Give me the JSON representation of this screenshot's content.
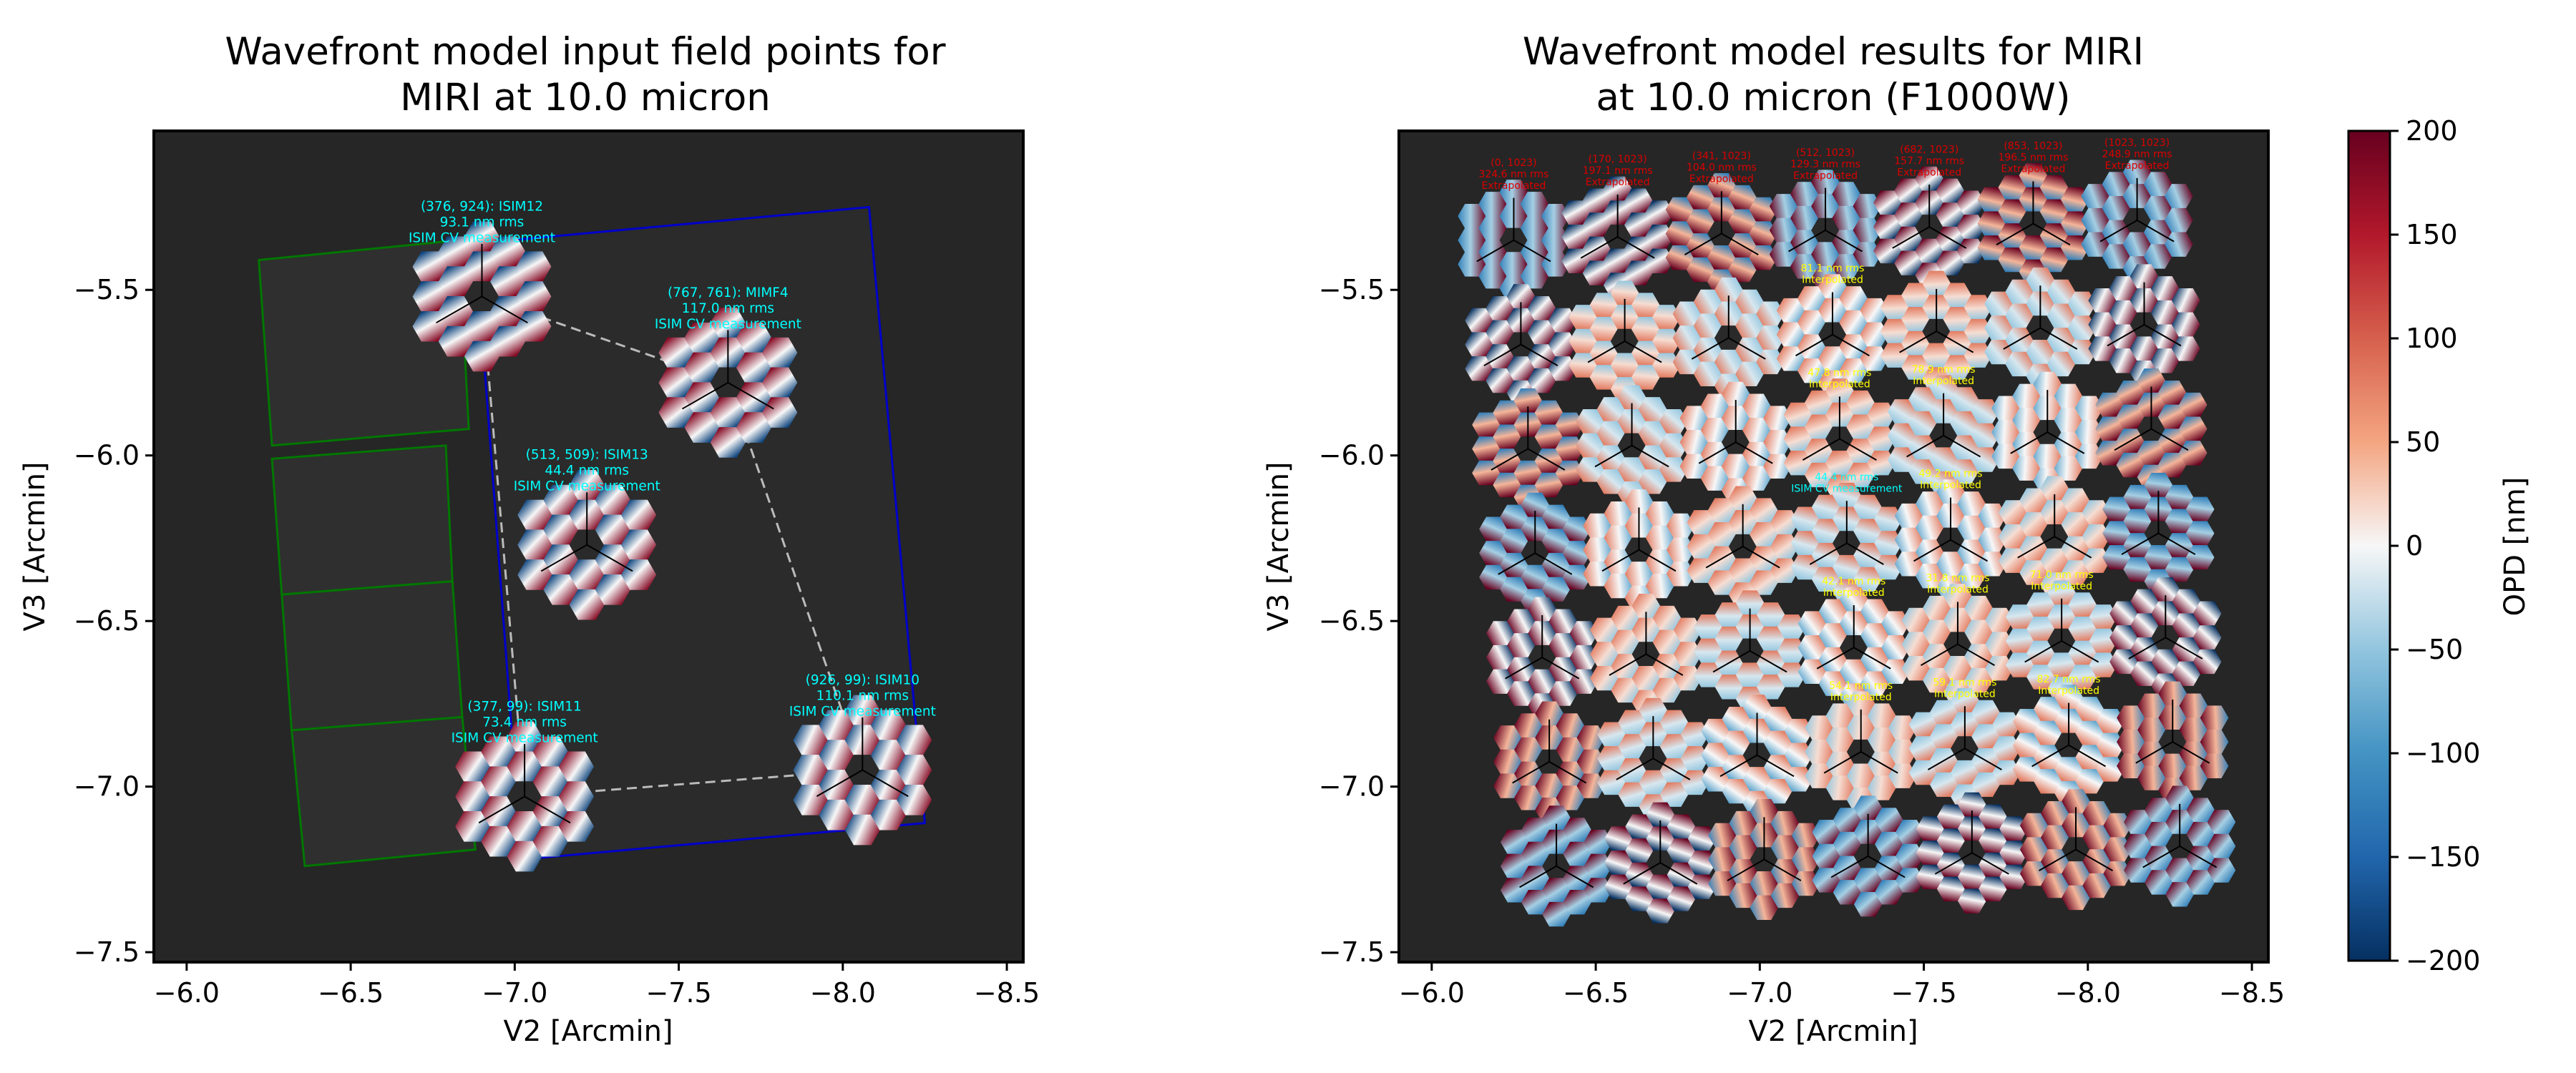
{
  "chart_data": [
    {
      "type": "scatter",
      "title": "Wavefront model input field points for\nMIRI at 10.0 micron",
      "xlabel": "V2 [Arcmin]",
      "ylabel": "V3 [Arcmin]",
      "xlim": [
        -5.9,
        -8.55
      ],
      "ylim": [
        -7.53,
        -5.02
      ],
      "xticks": [
        "−6.0",
        "−6.5",
        "−7.0",
        "−7.5",
        "−8.0",
        "−8.5"
      ],
      "yticks": [
        "−5.5",
        "−6.0",
        "−6.5",
        "−7.0",
        "−7.5"
      ],
      "grid": false,
      "background": "#262626",
      "colors": {
        "annotation": "#00ffff",
        "instrument_outline": "#0000cc",
        "detector_outline": "#007700",
        "path": "#bbbbbb"
      },
      "points": [
        {
          "x": -6.9,
          "y": -5.52,
          "label": [
            "(376, 924): ISIM12",
            "93.1 nm rms",
            "ISIM CV measurement"
          ]
        },
        {
          "x": -7.65,
          "y": -5.78,
          "label": [
            "(767, 761): MIMF4",
            "117.0 nm rms",
            "ISIM CV measurement"
          ]
        },
        {
          "x": -7.22,
          "y": -6.27,
          "label": [
            "(513, 509): ISIM13",
            "44.4 nm rms",
            "ISIM CV measurement"
          ]
        },
        {
          "x": -7.03,
          "y": -7.03,
          "label": [
            "(377, 99): ISIM11",
            "73.4 nm rms",
            "ISIM CV measurement"
          ]
        },
        {
          "x": -8.06,
          "y": -6.95,
          "label": [
            "(926, 99): ISIM10",
            "110.1 nm rms",
            "ISIM CV measurement"
          ]
        }
      ]
    },
    {
      "type": "heatmap",
      "title": "Wavefront model results for MIRI\nat 10.0 micron (F1000W)",
      "xlabel": "V2 [Arcmin]",
      "ylabel": "V3 [Arcmin]",
      "xlim": [
        -5.9,
        -8.55
      ],
      "ylim": [
        -7.53,
        -5.02
      ],
      "xticks": [
        "−6.0",
        "−6.5",
        "−7.0",
        "−7.5",
        "−8.0",
        "−8.5"
      ],
      "yticks": [
        "−5.5",
        "−6.0",
        "−6.5",
        "−7.0",
        "−7.5"
      ],
      "grid": false,
      "colorbar": {
        "label": "OPD [nm]",
        "range": [
          -200,
          200
        ],
        "colormap": "RdBu_r",
        "ticks": [
          "200",
          "150",
          "100",
          "50",
          "0",
          "−50",
          "−100",
          "−150",
          "−200"
        ]
      },
      "grid_points": 7,
      "colors": {
        "extrapolated": "#dd0000",
        "interpolated": "#ffff00",
        "measured": "#00ffff"
      },
      "legible_labels": [
        {
          "row": 0,
          "col": 0,
          "text": [
            "(0, 1023)",
            "324.6 nm rms",
            "Extrapolated"
          ]
        },
        {
          "row": 0,
          "col": 1,
          "text": [
            "(170, 1023)",
            "197.1 nm rms",
            "Extrapolated"
          ]
        },
        {
          "row": 0,
          "col": 2,
          "text": [
            "(341, 1023)",
            "104.0 nm rms",
            "Extrapolated"
          ]
        },
        {
          "row": 0,
          "col": 3,
          "text": [
            "(512, 1023)",
            "129.3 nm rms",
            "Extrapolated"
          ]
        },
        {
          "row": 0,
          "col": 4,
          "text": [
            "(682, 1023)",
            "157.7 nm rms",
            "Extrapolated"
          ]
        },
        {
          "row": 0,
          "col": 5,
          "text": [
            "(853, 1023)",
            "196.5 nm rms",
            "Extrapolated"
          ]
        },
        {
          "row": 0,
          "col": 6,
          "text": [
            "(1023, 1023)",
            "248.9 nm rms",
            "Extrapolated"
          ]
        },
        {
          "row": 1,
          "col": 3,
          "text": [
            "81.1 nm rms",
            "Interpolated"
          ]
        },
        {
          "row": 2,
          "col": 3,
          "text": [
            "47.8 nm rms",
            "Interpolated"
          ]
        },
        {
          "row": 2,
          "col": 4,
          "text": [
            "78.9 nm rms",
            "Interpolated"
          ]
        },
        {
          "row": 3,
          "col": 4,
          "text": [
            "49.2 nm rms",
            "Interpolated"
          ]
        },
        {
          "row": 3,
          "col": 3,
          "text": [
            "44.4 nm rms",
            "ISIM CV measurement"
          ]
        },
        {
          "row": 4,
          "col": 3,
          "text": [
            "42.1 nm rms",
            "Interpolated"
          ]
        },
        {
          "row": 4,
          "col": 4,
          "text": [
            "31.8 nm rms",
            "Interpolated"
          ]
        },
        {
          "row": 4,
          "col": 5,
          "text": [
            "71.0 nm rms",
            "Interpolated"
          ]
        },
        {
          "row": 5,
          "col": 3,
          "text": [
            "54.1 nm rms",
            "Interpolated"
          ]
        },
        {
          "row": 5,
          "col": 4,
          "text": [
            "59.1 nm rms",
            "Interpolated"
          ]
        },
        {
          "row": 5,
          "col": 5,
          "text": [
            "82.7 nm rms",
            "Interpolated"
          ]
        }
      ]
    }
  ]
}
